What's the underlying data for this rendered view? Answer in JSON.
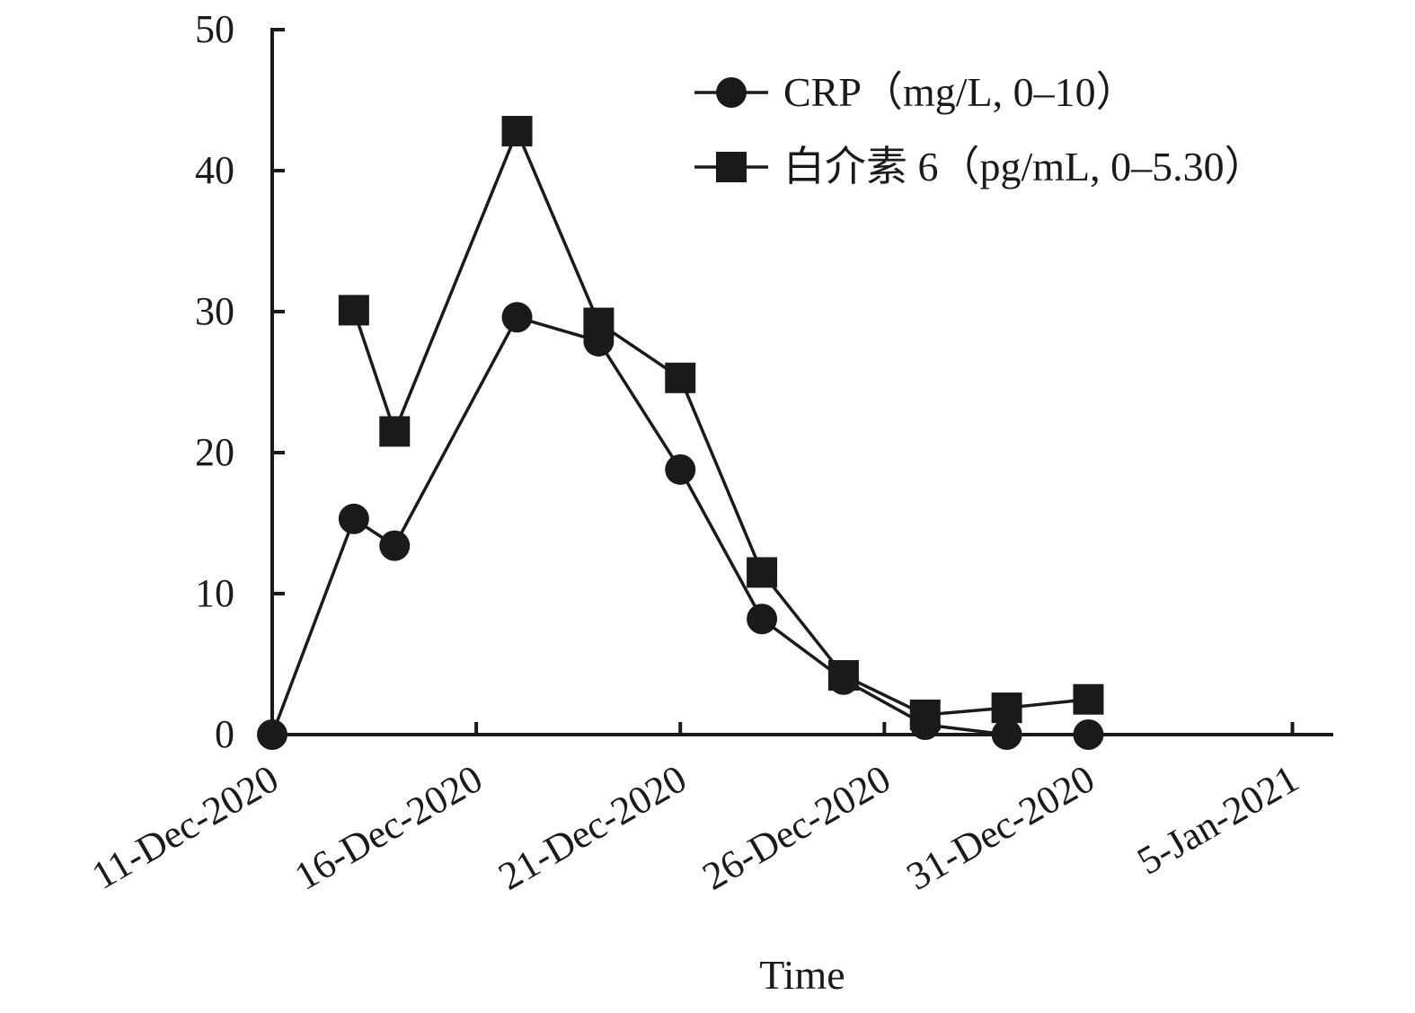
{
  "chart_data": {
    "type": "line",
    "xlabel": "Time",
    "ylabel": "",
    "ylim": [
      0,
      50
    ],
    "yticks": [
      0,
      10,
      20,
      30,
      40,
      50
    ],
    "xlim": [
      "2020-12-11",
      "2021-01-06"
    ],
    "xticks": [
      "2020-12-11",
      "2020-12-16",
      "2020-12-21",
      "2020-12-26",
      "2020-12-31",
      "2021-01-05"
    ],
    "xtick_labels": [
      "11-Dec-2020",
      "16-Dec-2020",
      "21-Dec-2020",
      "26-Dec-2020",
      "31-Dec-2020",
      "5-Jan-2021"
    ],
    "grid": false,
    "legend_position": "top-right",
    "series": [
      {
        "name": "CRP（mg/L, 0–10）",
        "marker": "circle",
        "color": "#1a1a1a",
        "points": [
          {
            "x": "2020-12-11",
            "y": 0
          },
          {
            "x": "2020-12-13",
            "y": 15.3
          },
          {
            "x": "2020-12-14",
            "y": 13.4
          },
          {
            "x": "2020-12-17",
            "y": 29.6
          },
          {
            "x": "2020-12-19",
            "y": 27.9
          },
          {
            "x": "2020-12-21",
            "y": 18.8
          },
          {
            "x": "2020-12-23",
            "y": 8.2
          },
          {
            "x": "2020-12-25",
            "y": 3.9
          },
          {
            "x": "2020-12-27",
            "y": 0.7
          },
          {
            "x": "2020-12-29",
            "y": 0
          },
          {
            "x": "2020-12-31",
            "y": 0
          }
        ]
      },
      {
        "name": "白介素 6（pg/mL, 0–5.30）",
        "marker": "square",
        "color": "#1a1a1a",
        "points": [
          {
            "x": "2020-12-13",
            "y": 30.1
          },
          {
            "x": "2020-12-14",
            "y": 21.5
          },
          {
            "x": "2020-12-17",
            "y": 42.8
          },
          {
            "x": "2020-12-19",
            "y": 29.2
          },
          {
            "x": "2020-12-21",
            "y": 25.3
          },
          {
            "x": "2020-12-23",
            "y": 11.5
          },
          {
            "x": "2020-12-25",
            "y": 4.2
          },
          {
            "x": "2020-12-27",
            "y": 1.4
          },
          {
            "x": "2020-12-29",
            "y": 1.9
          },
          {
            "x": "2020-12-31",
            "y": 2.5
          }
        ]
      }
    ]
  }
}
